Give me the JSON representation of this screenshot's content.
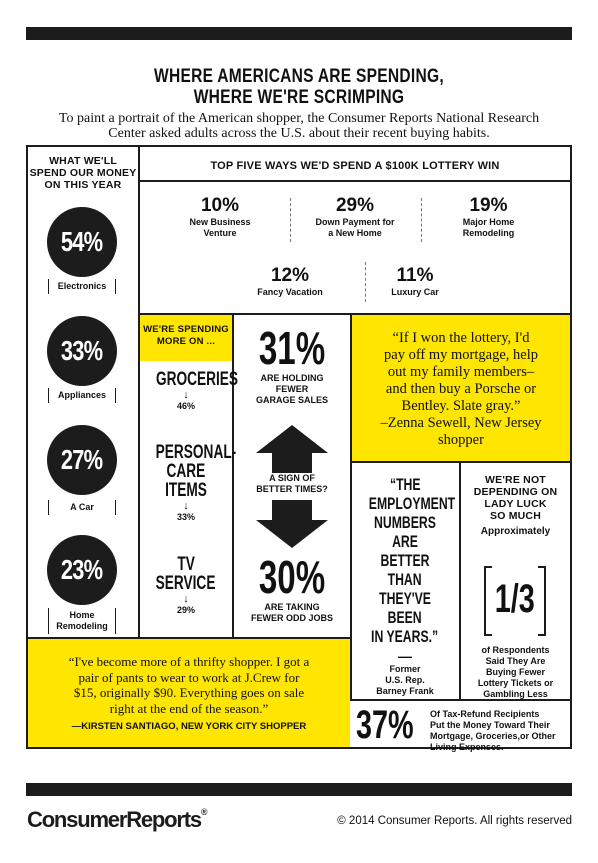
{
  "title": {
    "line1": "WHERE AMERICANS ARE SPENDING,",
    "line2": "WHERE WE'RE SCRIMPING"
  },
  "intro": {
    "line1": "To paint a portrait of the American shopper, the Consumer Reports National Research",
    "line2": "Center asked adults across the U.S. about their recent buying habits."
  },
  "left_panel": {
    "header": [
      "WHAT WE'LL",
      "SPEND OUR MONEY",
      "ON THIS YEAR"
    ],
    "items": [
      {
        "pct": "54%",
        "label": [
          "Electronics"
        ]
      },
      {
        "pct": "33%",
        "label": [
          "Appliances"
        ]
      },
      {
        "pct": "27%",
        "label": [
          "A Car"
        ]
      },
      {
        "pct": "23%",
        "label": [
          "Home",
          "Remodeling"
        ]
      }
    ]
  },
  "lottery": {
    "header": "TOP FIVE WAYS WE'D SPEND A $100K LOTTERY WIN",
    "items": [
      {
        "pct": "10%",
        "label": [
          "New Business",
          "Venture"
        ]
      },
      {
        "pct": "29%",
        "label": [
          "Down Payment for",
          "a New Home"
        ]
      },
      {
        "pct": "19%",
        "label": [
          "Major Home",
          "Remodeling"
        ]
      },
      {
        "pct": "12%",
        "label": [
          "Fancy Vacation"
        ]
      },
      {
        "pct": "11%",
        "label": [
          "Luxury Car"
        ]
      }
    ]
  },
  "spending_more": {
    "header": [
      "WE'RE SPENDING",
      "MORE ON ..."
    ],
    "items": [
      {
        "name": [
          "GROCERIES"
        ],
        "arrow": "↓",
        "pct": "46%"
      },
      {
        "name": [
          "PERSONAL-",
          "CARE",
          "ITEMS"
        ],
        "arrow": "↓",
        "pct": "33%"
      },
      {
        "name": [
          "TV",
          "SERVICE"
        ],
        "arrow": "↓",
        "pct": "29%"
      }
    ]
  },
  "garage": {
    "pct": "31%",
    "label": [
      "ARE HOLDING",
      "FEWER",
      "GARAGE SALES"
    ]
  },
  "sign": [
    "A SIGN OF",
    "BETTER TIMES?"
  ],
  "odd_jobs": {
    "pct": "30%",
    "label": [
      "ARE TAKING",
      "FEWER ODD JOBS"
    ]
  },
  "quote1": {
    "lines": [
      "“If I won the lottery, I'd",
      "pay off my mortgage, help",
      "out my family members–",
      "and then buy a Porsche or",
      "Bentley. Slate gray.”",
      "–Zenna Sewell, New Jersey",
      "shopper"
    ]
  },
  "quote2": {
    "lines": [
      "“THE",
      "EMPLOYMENT",
      "NUMBERS",
      "ARE BETTER",
      "THAN",
      "THEY'VE",
      "BEEN",
      "IN YEARS.”"
    ],
    "dash": "—",
    "attribution": [
      "Former",
      "U.S. Rep.",
      "Barney Frank"
    ]
  },
  "lady_luck": {
    "header": [
      "WE'RE NOT",
      "DEPENDING ON",
      "LADY LUCK",
      "SO MUCH"
    ],
    "approx": "Approximately",
    "fraction": "1/3",
    "label": [
      "of Respondents",
      "Said They Are",
      "Buying Fewer",
      "Lottery Tickets or",
      "Gambling Less"
    ]
  },
  "quote3": {
    "lines": [
      "“I've become more of a thrifty shopper. I got a",
      "pair of pants to wear to work at J.Crew for",
      "$15, originally $90. Everything goes on sale",
      "right at the end of the season.”"
    ],
    "attribution": "—KIRSTEN SANTIAGO, NEW YORK CITY SHOPPER"
  },
  "tax": {
    "pct": "37%",
    "label": [
      "Of Tax-Refund Recipients",
      "Put the Money Toward Their",
      "Mortgage, Groceries,or Other",
      "Living Expenses."
    ]
  },
  "footer": {
    "logo": "ConsumerReports",
    "reg": "®",
    "copyright": "© 2014 Consumer Reports. All rights reserved"
  },
  "colors": {
    "dark": "#1c1c1c",
    "yellow": "#ffe600",
    "logo_red": "#c8102e"
  }
}
